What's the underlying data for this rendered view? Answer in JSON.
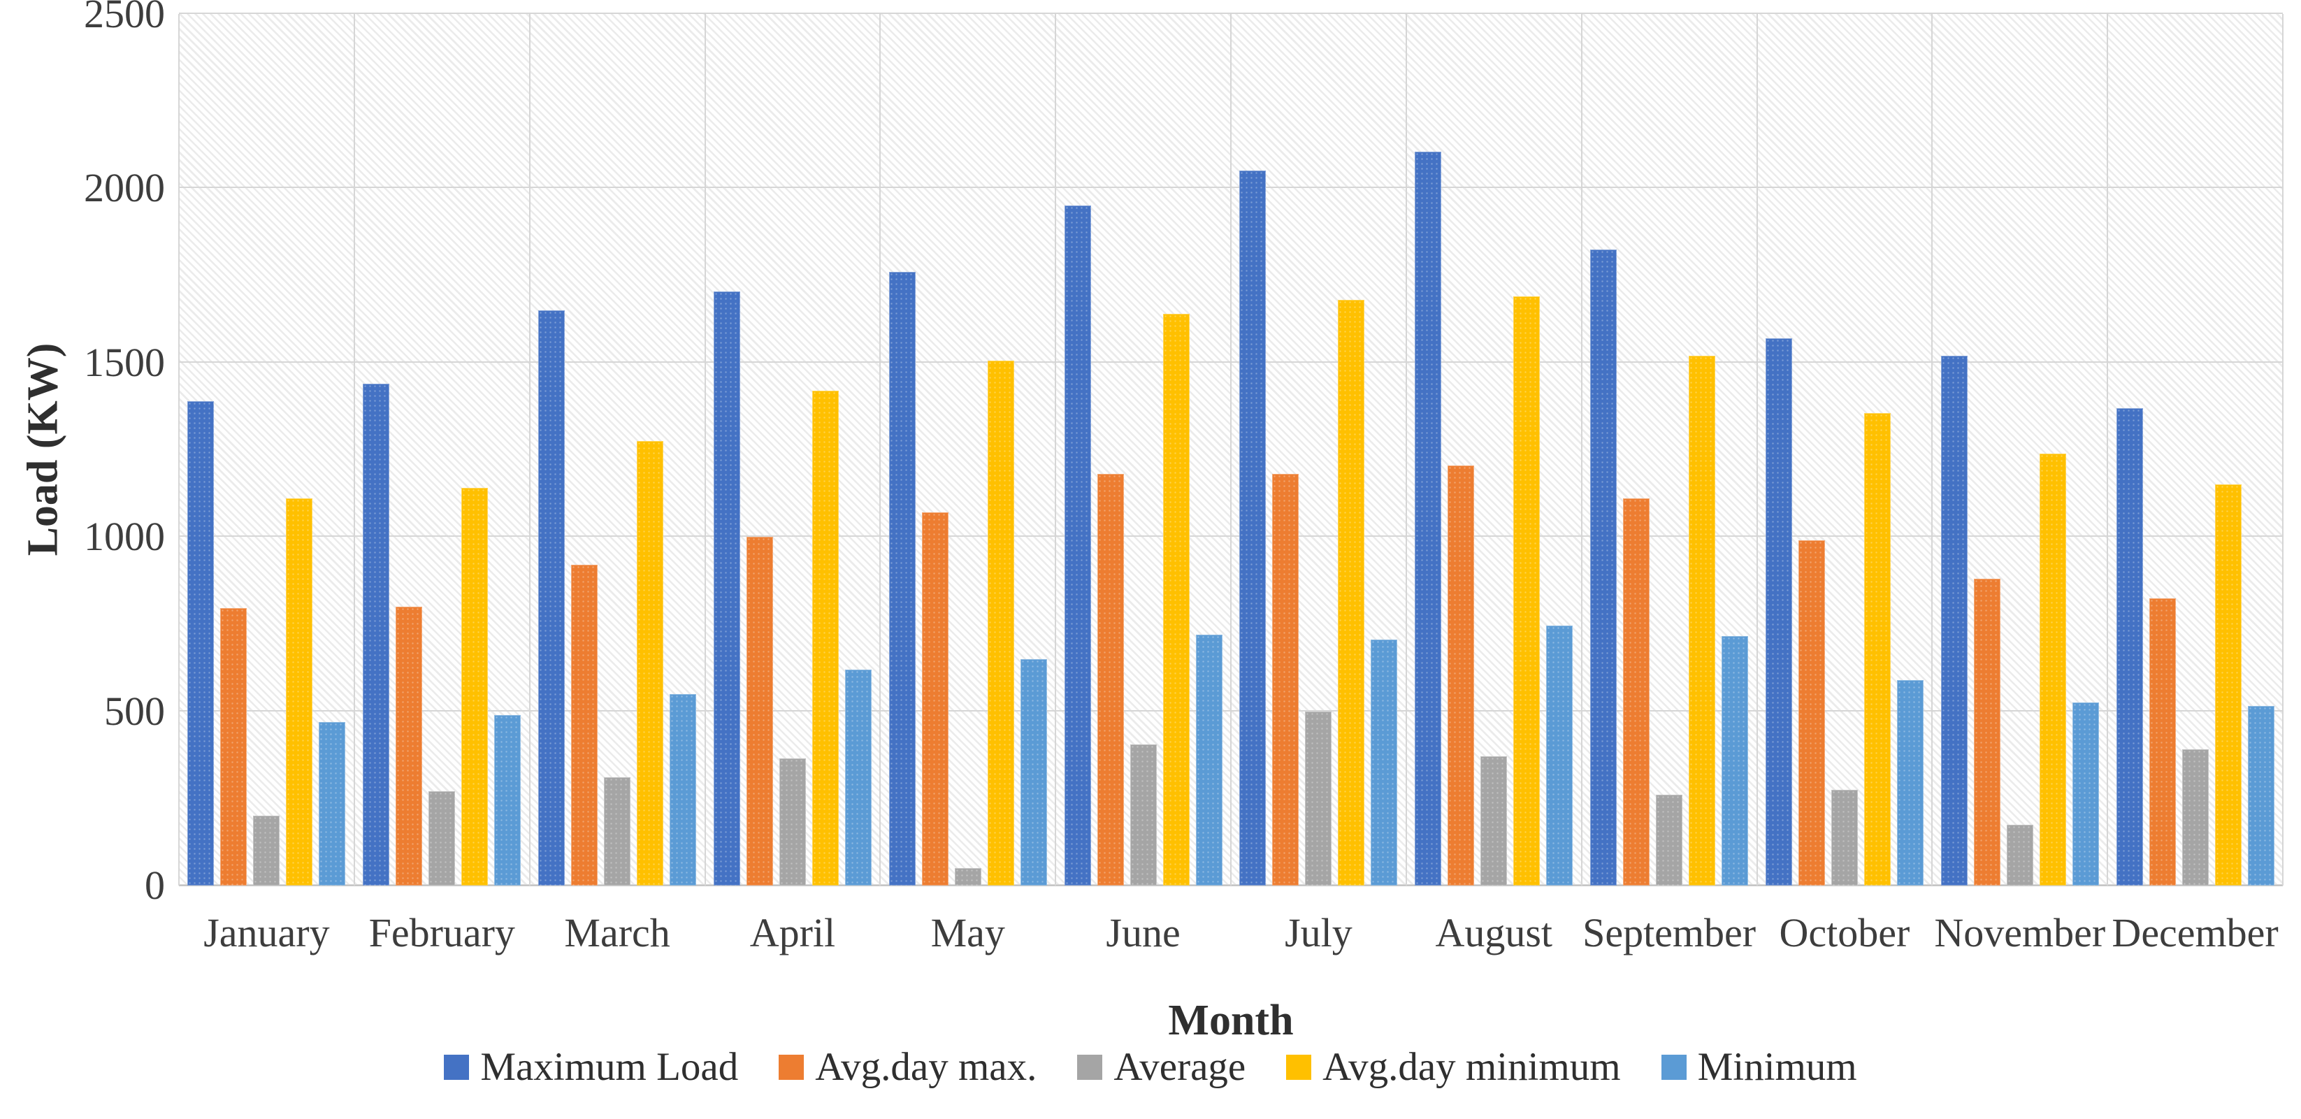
{
  "chart_data": {
    "type": "bar",
    "title": "",
    "xlabel": "Month",
    "ylabel": "Load (KW)",
    "ylim": [
      0,
      2500
    ],
    "yticks": [
      0,
      500,
      1000,
      1500,
      2000,
      2500
    ],
    "grid": "horizontal gridlines every 500 plus vertical category separators",
    "plot_background": "light diagonal hatch",
    "legend_position": "bottom",
    "categories": [
      "January",
      "February",
      "March",
      "April",
      "May",
      "June",
      "July",
      "August",
      "September",
      "October",
      "November",
      "December"
    ],
    "series": [
      {
        "name": "Maximum Load",
        "color": "#4472C4",
        "values": [
          1390,
          1440,
          1650,
          1705,
          1760,
          1950,
          2050,
          2105,
          1825,
          1570,
          1520,
          1370
        ]
      },
      {
        "name": "Avg.day max.",
        "color": "#ED7D31",
        "values": [
          795,
          800,
          920,
          1000,
          1070,
          1180,
          1180,
          1205,
          1110,
          990,
          880,
          825
        ]
      },
      {
        "name": "Average",
        "color": "#A5A5A5",
        "values": [
          200,
          270,
          310,
          365,
          50,
          405,
          500,
          370,
          260,
          275,
          175,
          390
        ]
      },
      {
        "name": "Avg.day minimum",
        "color": "#FFC000",
        "values": [
          1110,
          1140,
          1275,
          1420,
          1505,
          1640,
          1680,
          1690,
          1520,
          1355,
          1240,
          1150
        ]
      },
      {
        "name": "Minimum",
        "color": "#5B9BD5",
        "values": [
          470,
          490,
          550,
          620,
          650,
          720,
          705,
          745,
          715,
          590,
          525,
          515
        ]
      }
    ],
    "gridline_color": "#d6d6d6",
    "text_color": "#3d3d3d"
  }
}
